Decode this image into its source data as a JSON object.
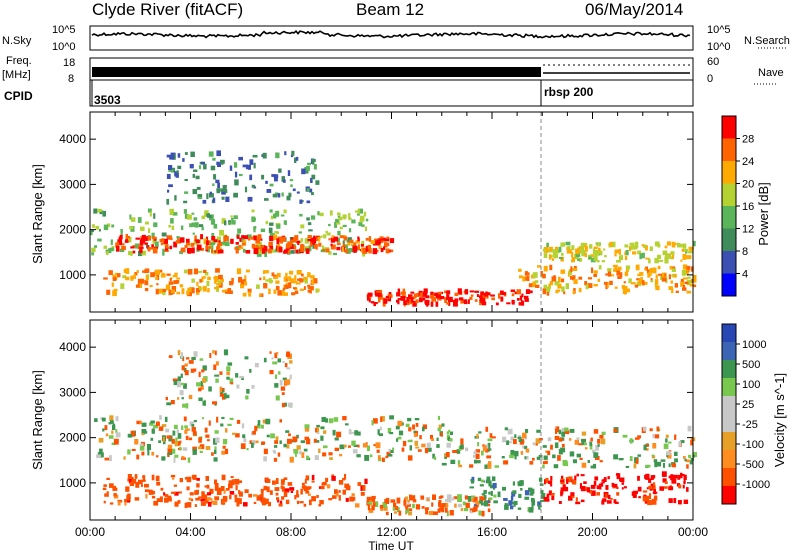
{
  "header": {
    "station": "Clyde River (fitACF)",
    "beam": "Beam 12",
    "date": "06/May/2014"
  },
  "noise_panel": {
    "left_label": "N.Sky",
    "right_label": "N.Search",
    "left_ticks": [
      "10^5",
      "10^0"
    ],
    "right_ticks": [
      "10^5",
      "10^0"
    ]
  },
  "freq_panel": {
    "left_label_top": "Freq.",
    "left_label_unit": "[MHz]",
    "right_label": "Nave",
    "left_ticks": [
      "18",
      "8"
    ],
    "right_ticks": [
      "60",
      "0"
    ]
  },
  "cpid_panel": {
    "label": "CPID",
    "segments": [
      {
        "start_hour": 0,
        "label": "3503"
      },
      {
        "start_hour": 18,
        "label": "rbsp 200"
      }
    ]
  },
  "colors": {
    "power": [
      "#0000ff",
      "#3c50b4",
      "#3f8c5a",
      "#5ab45a",
      "#b4d232",
      "#ffaa00",
      "#ff6400",
      "#ff0000"
    ],
    "velocity": [
      "#ff0000",
      "#ff5000",
      "#ff8c1e",
      "#e6a028",
      "#c8c8c8",
      "#c8c8c8",
      "#78c850",
      "#3c9650",
      "#3c64b4",
      "#2846b4"
    ]
  },
  "chart_data": [
    {
      "type": "heatmap",
      "title": "",
      "xlabel": "Time UT",
      "ylabel": "Slant Range [km]",
      "xlim": [
        0,
        24
      ],
      "ylim": [
        180,
        4600
      ],
      "x_ticks": [
        "00:00",
        "04:00",
        "08:00",
        "12:00",
        "16:00",
        "20:00",
        "00:00"
      ],
      "y_ticks": [
        "1000",
        "2000",
        "3000",
        "4000"
      ],
      "colorbar": {
        "label": "Power [dB]",
        "ticks": [
          "28",
          "24",
          "20",
          "16",
          "12",
          "8",
          "4"
        ],
        "range": [
          0,
          30
        ]
      },
      "bands": [
        {
          "t0": 0,
          "t1": 11,
          "r0": 1450,
          "r1": 2450,
          "level": 14
        },
        {
          "t0": 1,
          "t1": 12,
          "r0": 1500,
          "r1": 1850,
          "level": 26
        },
        {
          "t0": 0.5,
          "t1": 9,
          "r0": 550,
          "r1": 1100,
          "level": 22
        },
        {
          "t0": 11,
          "t1": 17.5,
          "r0": 350,
          "r1": 650,
          "level": 28
        },
        {
          "t0": 17,
          "t1": 24,
          "r0": 600,
          "r1": 1200,
          "level": 22
        },
        {
          "t0": 18,
          "t1": 24,
          "r0": 1300,
          "r1": 1700,
          "level": 18
        },
        {
          "t0": 3,
          "t1": 9,
          "r0": 2600,
          "r1": 3700,
          "level": 8
        }
      ]
    },
    {
      "type": "heatmap",
      "title": "",
      "xlabel": "Time UT",
      "ylabel": "Slant Range [km]",
      "xlim": [
        0,
        24
      ],
      "ylim": [
        180,
        4600
      ],
      "x_ticks": [
        "00:00",
        "04:00",
        "08:00",
        "12:00",
        "16:00",
        "20:00",
        "00:00"
      ],
      "y_ticks": [
        "1000",
        "2000",
        "3000",
        "4000"
      ],
      "colorbar": {
        "label": "Velocity [m s^-1]",
        "ticks": [
          "1000",
          "500",
          "100",
          "25",
          "-25",
          "-100",
          "-500",
          "-1000"
        ],
        "range": [
          -1000,
          1000
        ]
      },
      "bands": [
        {
          "t0": 0,
          "t1": 14,
          "r0": 1500,
          "r1": 2450,
          "level": 0
        },
        {
          "t0": 14,
          "t1": 24,
          "r0": 1350,
          "r1": 2200,
          "level": 0
        },
        {
          "t0": 0.5,
          "t1": 11,
          "r0": 500,
          "r1": 1150,
          "level": -300
        },
        {
          "t0": 11,
          "t1": 16,
          "r0": 320,
          "r1": 700,
          "level": -150
        },
        {
          "t0": 15,
          "t1": 18,
          "r0": 400,
          "r1": 1100,
          "level": 300
        },
        {
          "t0": 18,
          "t1": 24,
          "r0": 550,
          "r1": 1200,
          "level": -600
        },
        {
          "t0": 3,
          "t1": 8,
          "r0": 2700,
          "r1": 3900,
          "level": 0
        }
      ]
    }
  ]
}
